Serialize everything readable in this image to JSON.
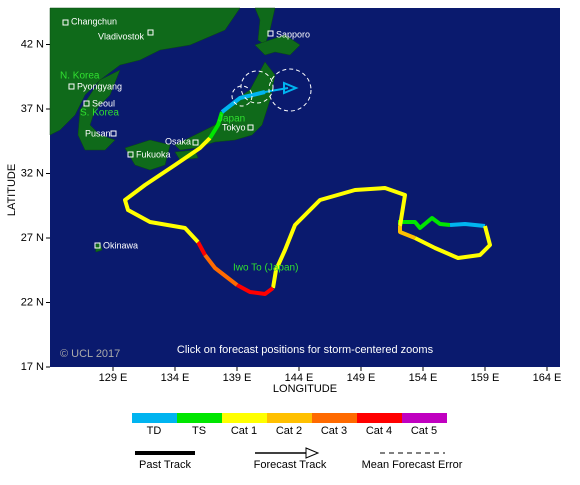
{
  "map": {
    "xlabel": "LONGITUDE",
    "ylabel": "LATITUDE",
    "xticks": [
      {
        "value": 129,
        "label": "129 E"
      },
      {
        "value": 134,
        "label": "134 E"
      },
      {
        "value": 139,
        "label": "139 E"
      },
      {
        "value": 144,
        "label": "144 E"
      },
      {
        "value": 149,
        "label": "149 E"
      },
      {
        "value": 154,
        "label": "154 E"
      },
      {
        "value": 159,
        "label": "159 E"
      },
      {
        "value": 164,
        "label": "164 E"
      }
    ],
    "yticks": [
      {
        "value": 17,
        "label": "17 N"
      },
      {
        "value": 22,
        "label": "22 N"
      },
      {
        "value": 27,
        "label": "27 N"
      },
      {
        "value": 32,
        "label": "32 N"
      },
      {
        "value": 37,
        "label": "37 N"
      },
      {
        "value": 42,
        "label": "42 N"
      }
    ],
    "places": [
      "Changchun",
      "Vladivostok",
      "Sapporo",
      "N. Korea",
      "Pyongyang",
      "Seoul",
      "S. Korea",
      "Japan",
      "Tokyo",
      "Pusan",
      "Osaka",
      "Fukuoka",
      "Okinawa",
      "Iwo To (Japan)"
    ],
    "copyright": "© UCL 2017",
    "note": "Click on forecast positions for storm-centered zooms"
  },
  "legend": {
    "scale": [
      {
        "label": "TD",
        "color": "#00b4f0"
      },
      {
        "label": "TS",
        "color": "#00e600"
      },
      {
        "label": "Cat 1",
        "color": "#ffff00"
      },
      {
        "label": "Cat 2",
        "color": "#ffc000"
      },
      {
        "label": "Cat 3",
        "color": "#ff6a00"
      },
      {
        "label": "Cat 4",
        "color": "#ff0000"
      },
      {
        "label": "Cat 5",
        "color": "#c000c0"
      }
    ],
    "lines": [
      "Past Track",
      "Forecast Track",
      "Mean Forecast Error"
    ]
  }
}
